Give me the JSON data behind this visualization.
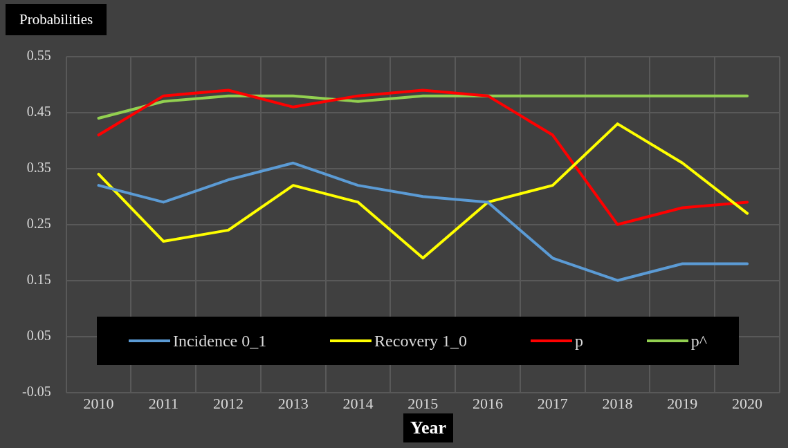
{
  "chart_data": {
    "type": "line",
    "ylabel": "Probabilities",
    "xlabel": "Year",
    "categories": [
      "2010",
      "2011",
      "2012",
      "2013",
      "2014",
      "2015",
      "2016",
      "2017",
      "2018",
      "2019",
      "2020"
    ],
    "series": [
      {
        "name": "Incidence 0_1",
        "color": "#5b9bd5",
        "values": [
          0.32,
          0.29,
          0.33,
          0.36,
          0.32,
          0.3,
          0.29,
          0.19,
          0.15,
          0.18,
          0.18
        ]
      },
      {
        "name": "Recovery 1_0",
        "color": "#ffff00",
        "values": [
          0.34,
          0.22,
          0.24,
          0.32,
          0.29,
          0.19,
          0.29,
          0.32,
          0.43,
          0.36,
          0.27
        ]
      },
      {
        "name": "p",
        "color": "#ff0000",
        "values": [
          0.41,
          0.48,
          0.49,
          0.46,
          0.48,
          0.49,
          0.48,
          0.41,
          0.25,
          0.28,
          0.29
        ]
      },
      {
        "name": "p^",
        "color": "#92d050",
        "values": [
          0.44,
          0.47,
          0.48,
          0.48,
          0.47,
          0.48,
          0.48,
          0.48,
          0.48,
          0.48,
          0.48
        ]
      }
    ],
    "ylim": [
      -0.05,
      0.55
    ],
    "yticks": [
      -0.05,
      0.05,
      0.15,
      0.25,
      0.35,
      0.45,
      0.55
    ],
    "grid": true,
    "legend": "bottom",
    "marker": "none",
    "line_style": "solid"
  }
}
